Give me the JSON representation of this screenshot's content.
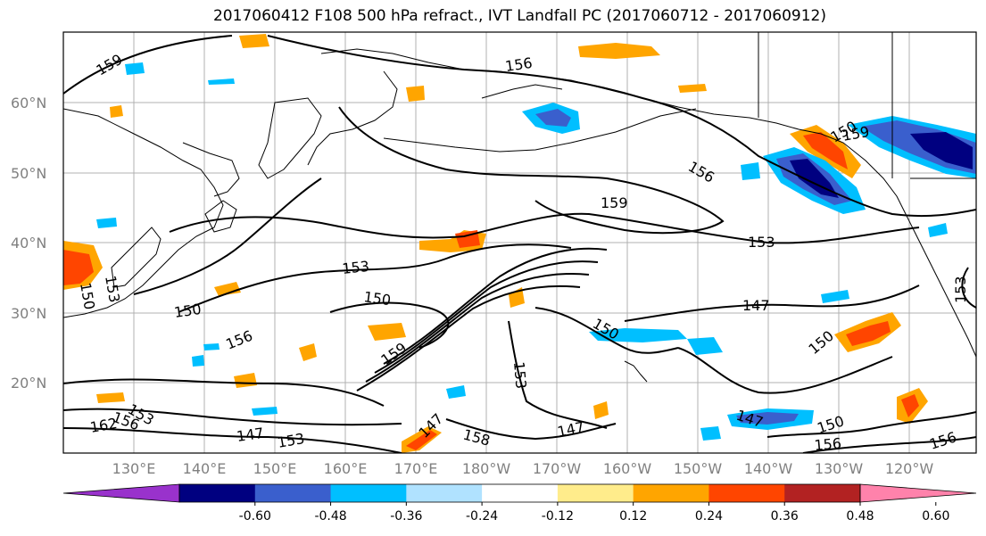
{
  "title": "2017060412 F108 500 hPa refract., IVT Landfall PC (2017060712 - 2017060912)",
  "axes": {
    "lat_labels": [
      "60°N",
      "50°N",
      "40°N",
      "30°N",
      "20°N"
    ],
    "lon_labels": [
      "130°E",
      "140°E",
      "150°E",
      "160°E",
      "170°E",
      "180°W",
      "170°W",
      "160°W",
      "150°W",
      "140°W",
      "130°W",
      "120°W"
    ]
  },
  "contour_labels": [
    "159",
    "156",
    "156",
    "159",
    "153",
    "153",
    "150",
    "150",
    "147",
    "150",
    "156",
    "153",
    "159",
    "150",
    "153",
    "150",
    "147",
    "147",
    "158",
    "147",
    "150",
    "156",
    "156",
    "153",
    "162",
    "156",
    "147",
    "153",
    "150",
    "153",
    "159"
  ],
  "colorbar": {
    "colors": [
      "#9932cc",
      "#000080",
      "#3a5fcd",
      "#00bfff",
      "#b0e2ff",
      "#ffffff",
      "#ffec8b",
      "#ffa500",
      "#ff4500",
      "#b22222",
      "#ff82ab"
    ],
    "ticks": [
      "-0.60",
      "-0.48",
      "-0.36",
      "-0.24",
      "-0.12",
      "0.12",
      "0.24",
      "0.36",
      "0.48",
      "0.60"
    ]
  }
}
